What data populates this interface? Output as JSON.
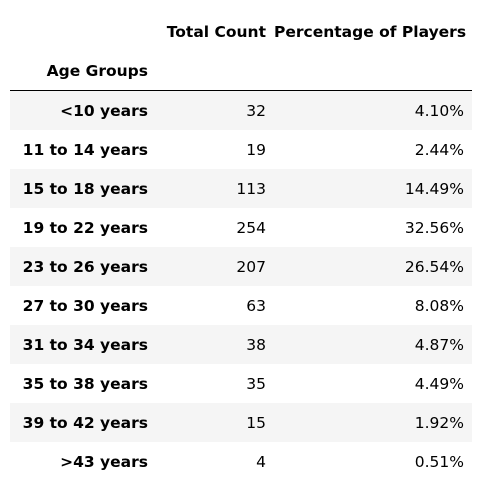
{
  "table": {
    "columns": [
      "Total Count",
      "Percentage of Players"
    ],
    "index_name": "Age Groups",
    "rows": [
      {
        "label": "<10 years",
        "count": "32",
        "percent": "4.10%"
      },
      {
        "label": "11 to 14 years",
        "count": "19",
        "percent": "2.44%"
      },
      {
        "label": "15 to 18 years",
        "count": "113",
        "percent": "14.49%"
      },
      {
        "label": "19 to 22 years",
        "count": "254",
        "percent": "32.56%"
      },
      {
        "label": "23 to 26 years",
        "count": "207",
        "percent": "26.54%"
      },
      {
        "label": "27 to 30 years",
        "count": "63",
        "percent": "8.08%"
      },
      {
        "label": "31 to 34 years",
        "count": "38",
        "percent": "4.87%"
      },
      {
        "label": "35 to 38 years",
        "count": "35",
        "percent": "4.49%"
      },
      {
        "label": "39 to 42 years",
        "count": "15",
        "percent": "1.92%"
      },
      {
        "label": ">43 years",
        "count": "4",
        "percent": "0.51%"
      }
    ]
  }
}
